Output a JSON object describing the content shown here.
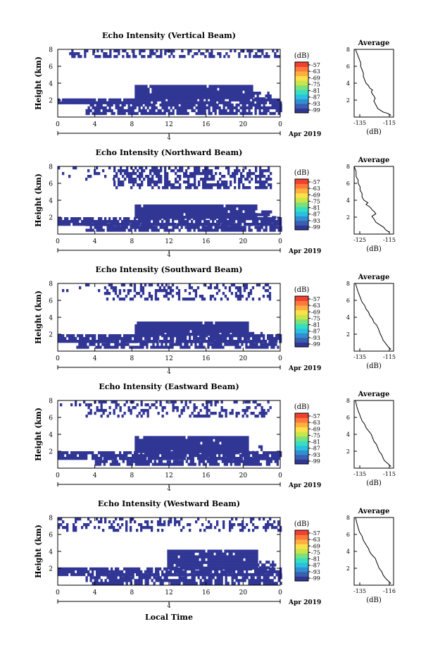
{
  "figure": {
    "xlabel": "Local Time",
    "date_label": "Apr 2019",
    "date_tick_label": "4"
  },
  "colorbar": {
    "unit_label": "(dB)",
    "ticks": [
      "-57",
      "-63",
      "-69",
      "-75",
      "-81",
      "-87",
      "-93",
      "-99"
    ],
    "colors": [
      "#313695",
      "#3a5fb0",
      "#2f8fd0",
      "#2cc0e0",
      "#35e0c0",
      "#7ee07a",
      "#c8e64a",
      "#ffe04a",
      "#ffb040",
      "#ff7a3a",
      "#f04030"
    ]
  },
  "chart_data": [
    {
      "type": "heatmap",
      "title": "Echo Intensity (Vertical Beam)",
      "ylabel": "Height (km)",
      "xlim": [
        0,
        24
      ],
      "ylim": [
        0,
        8
      ],
      "x_ticks": [
        "0",
        "4",
        "8",
        "12",
        "16",
        "20",
        "0"
      ],
      "y_ticks": [
        "2",
        "4",
        "6",
        "8"
      ],
      "echo_regions": [
        {
          "hours": [
            0,
            24
          ],
          "km": [
            1.6,
            2.2
          ],
          "fill": 0.88
        },
        {
          "hours": [
            3,
            24
          ],
          "km": [
            0.5,
            1.6
          ],
          "fill": 0.78
        },
        {
          "hours": [
            8.3,
            21
          ],
          "km": [
            2.2,
            3.8
          ],
          "fill": 0.97
        },
        {
          "hours": [
            21,
            23
          ],
          "km": [
            2.2,
            3.0
          ],
          "fill": 0.55
        },
        {
          "hours": [
            1,
            24
          ],
          "km": [
            7.0,
            8.0
          ],
          "fill": 0.42
        }
      ],
      "profile": {
        "title": "Average",
        "xlabel": "(dB)",
        "x_ticks": [
          "-135",
          "-115"
        ],
        "xlim": [
          -140,
          -110
        ],
        "y_ticks": [
          "2",
          "4",
          "6",
          "8"
        ],
        "ylim": [
          0,
          8
        ],
        "points": [
          [
            -112,
            0.2
          ],
          [
            -114,
            0.4
          ],
          [
            -118,
            0.6
          ],
          [
            -120,
            0.8
          ],
          [
            -122,
            1.0
          ],
          [
            -123,
            1.3
          ],
          [
            -124,
            1.6
          ],
          [
            -125,
            1.9
          ],
          [
            -124,
            2.2
          ],
          [
            -125,
            2.5
          ],
          [
            -126,
            2.7
          ],
          [
            -127,
            3.0
          ],
          [
            -126,
            3.2
          ],
          [
            -128,
            3.4
          ],
          [
            -129,
            3.7
          ],
          [
            -131,
            4.0
          ],
          [
            -132,
            4.4
          ],
          [
            -133,
            4.8
          ],
          [
            -133,
            5.2
          ],
          [
            -134,
            5.6
          ],
          [
            -135,
            6.0
          ],
          [
            -135,
            6.4
          ],
          [
            -136,
            6.8
          ],
          [
            -137,
            7.2
          ],
          [
            -138,
            7.6
          ],
          [
            -139,
            8.0
          ]
        ]
      }
    },
    {
      "type": "heatmap",
      "title": "Echo Intensity (Northward Beam)",
      "ylabel": "Height (km)",
      "xlim": [
        0,
        24
      ],
      "ylim": [
        0,
        8
      ],
      "x_ticks": [
        "0",
        "4",
        "8",
        "12",
        "16",
        "20",
        "0"
      ],
      "y_ticks": [
        "2",
        "4",
        "6",
        "8"
      ],
      "echo_regions": [
        {
          "hours": [
            0,
            24
          ],
          "km": [
            1.3,
            2.0
          ],
          "fill": 0.85
        },
        {
          "hours": [
            3,
            24
          ],
          "km": [
            0.3,
            1.3
          ],
          "fill": 0.75
        },
        {
          "hours": [
            8.3,
            21.5
          ],
          "km": [
            2.0,
            3.5
          ],
          "fill": 0.97
        },
        {
          "hours": [
            21.5,
            23.5
          ],
          "km": [
            2.0,
            2.8
          ],
          "fill": 0.5
        },
        {
          "hours": [
            6,
            23
          ],
          "km": [
            5.5,
            8.0
          ],
          "fill": 0.55
        },
        {
          "hours": [
            0,
            6
          ],
          "km": [
            6.5,
            8.0
          ],
          "fill": 0.2
        }
      ],
      "profile": {
        "title": "Average",
        "xlabel": "(dB)",
        "x_ticks": [
          "-125",
          "-115"
        ],
        "xlim": [
          -130,
          -110
        ],
        "y_ticks": [
          "2",
          "4",
          "6",
          "8"
        ],
        "ylim": [
          0,
          8
        ],
        "points": [
          [
            -112,
            0.2
          ],
          [
            -114,
            0.5
          ],
          [
            -115,
            0.8
          ],
          [
            -117,
            1.1
          ],
          [
            -119,
            1.4
          ],
          [
            -120,
            1.8
          ],
          [
            -121,
            2.1
          ],
          [
            -119,
            2.4
          ],
          [
            -120,
            2.7
          ],
          [
            -121,
            2.9
          ],
          [
            -122,
            3.2
          ],
          [
            -124,
            3.5
          ],
          [
            -123,
            3.7
          ],
          [
            -125,
            4.0
          ],
          [
            -126,
            4.4
          ],
          [
            -126,
            4.8
          ],
          [
            -127,
            5.2
          ],
          [
            -127,
            5.6
          ],
          [
            -128,
            6.0
          ],
          [
            -128,
            6.4
          ],
          [
            -129,
            6.8
          ],
          [
            -129,
            7.4
          ],
          [
            -130,
            8.0
          ]
        ]
      }
    },
    {
      "type": "heatmap",
      "title": "Echo Intensity (Southward Beam)",
      "ylabel": "Height (km)",
      "xlim": [
        0,
        24
      ],
      "ylim": [
        0,
        8
      ],
      "x_ticks": [
        "0",
        "4",
        "8",
        "12",
        "16",
        "20",
        "0"
      ],
      "y_ticks": [
        "2",
        "4",
        "6",
        "8"
      ],
      "echo_regions": [
        {
          "hours": [
            0,
            24
          ],
          "km": [
            1.3,
            2.0
          ],
          "fill": 0.85
        },
        {
          "hours": [
            2,
            24
          ],
          "km": [
            0.3,
            1.3
          ],
          "fill": 0.72
        },
        {
          "hours": [
            8.3,
            20.5
          ],
          "km": [
            2.0,
            3.5
          ],
          "fill": 0.97
        },
        {
          "hours": [
            20.5,
            22
          ],
          "km": [
            2.0,
            2.6
          ],
          "fill": 0.45
        },
        {
          "hours": [
            5,
            23
          ],
          "km": [
            6.0,
            8.0
          ],
          "fill": 0.38
        },
        {
          "hours": [
            0,
            5
          ],
          "km": [
            7.0,
            8.0
          ],
          "fill": 0.15
        }
      ],
      "profile": {
        "title": "Average",
        "xlabel": "(dB)",
        "x_ticks": [
          "-135",
          "-115"
        ],
        "xlim": [
          -140,
          -110
        ],
        "y_ticks": [
          "2",
          "4",
          "6",
          "8"
        ],
        "ylim": [
          0,
          8
        ],
        "points": [
          [
            -112,
            0.2
          ],
          [
            -114,
            0.5
          ],
          [
            -116,
            0.9
          ],
          [
            -118,
            1.3
          ],
          [
            -119,
            1.7
          ],
          [
            -120,
            2.0
          ],
          [
            -121,
            2.4
          ],
          [
            -122,
            2.8
          ],
          [
            -123,
            3.1
          ],
          [
            -125,
            3.4
          ],
          [
            -126,
            3.8
          ],
          [
            -128,
            4.2
          ],
          [
            -129,
            4.6
          ],
          [
            -131,
            5.0
          ],
          [
            -132,
            5.4
          ],
          [
            -134,
            5.8
          ],
          [
            -135,
            6.2
          ],
          [
            -136,
            6.6
          ],
          [
            -137,
            7.0
          ],
          [
            -138,
            7.5
          ],
          [
            -139,
            8.0
          ]
        ]
      }
    },
    {
      "type": "heatmap",
      "title": "Echo Intensity (Eastward Beam)",
      "ylabel": "Height (km)",
      "xlim": [
        0,
        24
      ],
      "ylim": [
        0,
        8
      ],
      "x_ticks": [
        "0",
        "4",
        "8",
        "12",
        "16",
        "20",
        "0"
      ],
      "y_ticks": [
        "2",
        "4",
        "6",
        "8"
      ],
      "echo_regions": [
        {
          "hours": [
            0,
            24
          ],
          "km": [
            1.3,
            2.0
          ],
          "fill": 0.85
        },
        {
          "hours": [
            4,
            24
          ],
          "km": [
            0.3,
            1.3
          ],
          "fill": 0.72
        },
        {
          "hours": [
            8.3,
            20.5
          ],
          "km": [
            2.0,
            3.8
          ],
          "fill": 0.97
        },
        {
          "hours": [
            20.5,
            22
          ],
          "km": [
            2.0,
            2.7
          ],
          "fill": 0.4
        },
        {
          "hours": [
            3,
            23
          ],
          "km": [
            6.2,
            8.0
          ],
          "fill": 0.33
        },
        {
          "hours": [
            0,
            3
          ],
          "km": [
            7.0,
            8.0
          ],
          "fill": 0.12
        }
      ],
      "profile": {
        "title": "Average",
        "xlabel": "(dB)",
        "x_ticks": [
          "-135",
          "-115"
        ],
        "xlim": [
          -140,
          -110
        ],
        "y_ticks": [
          "2",
          "4",
          "6",
          "8"
        ],
        "ylim": [
          0,
          8
        ],
        "points": [
          [
            -112,
            0.2
          ],
          [
            -114,
            0.5
          ],
          [
            -117,
            0.9
          ],
          [
            -118,
            1.2
          ],
          [
            -119,
            1.6
          ],
          [
            -121,
            2.0
          ],
          [
            -122,
            2.4
          ],
          [
            -123,
            2.8
          ],
          [
            -125,
            3.2
          ],
          [
            -126,
            3.6
          ],
          [
            -127,
            4.0
          ],
          [
            -129,
            4.4
          ],
          [
            -131,
            4.8
          ],
          [
            -132,
            5.2
          ],
          [
            -134,
            5.6
          ],
          [
            -135,
            6.0
          ],
          [
            -136,
            6.4
          ],
          [
            -137,
            6.8
          ],
          [
            -138,
            7.3
          ],
          [
            -139,
            8.0
          ]
        ]
      }
    },
    {
      "type": "heatmap",
      "title": "Echo Intensity (Westward Beam)",
      "ylabel": "Height (km)",
      "xlim": [
        0,
        24
      ],
      "ylim": [
        0,
        8
      ],
      "x_ticks": [
        "0",
        "4",
        "8",
        "12",
        "16",
        "20",
        "0"
      ],
      "y_ticks": [
        "2",
        "4",
        "6",
        "8"
      ],
      "echo_regions": [
        {
          "hours": [
            0,
            24
          ],
          "km": [
            1.4,
            2.1
          ],
          "fill": 0.82
        },
        {
          "hours": [
            3,
            24
          ],
          "km": [
            0.3,
            1.4
          ],
          "fill": 0.7
        },
        {
          "hours": [
            11.8,
            21.5
          ],
          "km": [
            2.1,
            4.2
          ],
          "fill": 0.95
        },
        {
          "hours": [
            21.5,
            23.5
          ],
          "km": [
            2.1,
            2.9
          ],
          "fill": 0.45
        },
        {
          "hours": [
            0,
            24
          ],
          "km": [
            6.5,
            8.0
          ],
          "fill": 0.3
        }
      ],
      "profile": {
        "title": "Average",
        "xlabel": "(dB)",
        "x_ticks": [
          "-135",
          "-116"
        ],
        "xlim": [
          -140,
          -110
        ],
        "y_ticks": [
          "2",
          "4",
          "6",
          "8"
        ],
        "ylim": [
          0,
          8
        ],
        "points": [
          [
            -112,
            0.2
          ],
          [
            -114,
            0.5
          ],
          [
            -116,
            0.8
          ],
          [
            -118,
            1.2
          ],
          [
            -119,
            1.6
          ],
          [
            -121,
            2.0
          ],
          [
            -122,
            2.4
          ],
          [
            -123,
            2.8
          ],
          [
            -124,
            3.2
          ],
          [
            -126,
            3.5
          ],
          [
            -128,
            3.9
          ],
          [
            -129,
            4.3
          ],
          [
            -131,
            4.8
          ],
          [
            -133,
            5.3
          ],
          [
            -134,
            5.8
          ],
          [
            -136,
            6.3
          ],
          [
            -137,
            6.8
          ],
          [
            -138,
            7.4
          ],
          [
            -139,
            8.0
          ]
        ]
      }
    }
  ]
}
